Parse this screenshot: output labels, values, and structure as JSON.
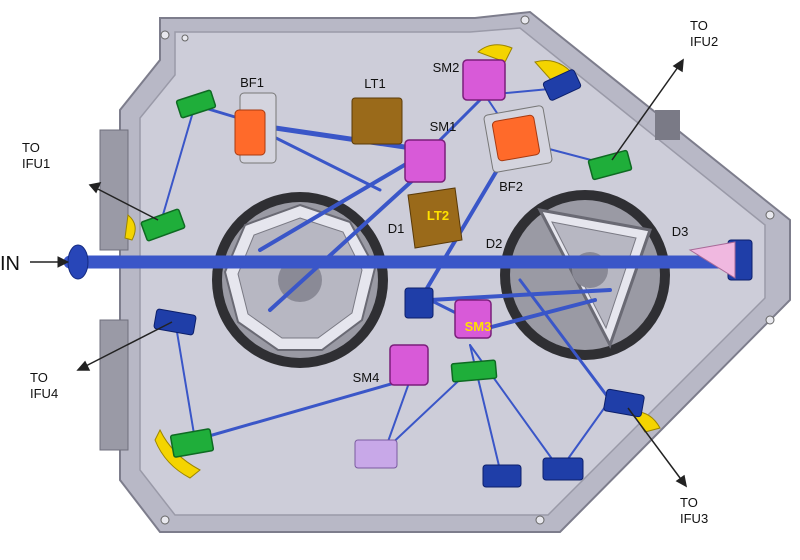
{
  "labels": {
    "input": "IN",
    "bf1": "BF1",
    "lt1": "LT1",
    "sm2": "SM2",
    "sm1": "SM1",
    "bf2": "BF2",
    "lt2": "LT2",
    "d1": "D1",
    "d2": "D2",
    "d3": "D3",
    "sm3": "SM3",
    "sm4": "SM4"
  },
  "outputs": {
    "ifu1": [
      "TO",
      "IFU1"
    ],
    "ifu2": [
      "TO",
      "IFU2"
    ],
    "ifu3": [
      "TO",
      "IFU3"
    ],
    "ifu4": [
      "TO",
      "IFU4"
    ]
  },
  "colors": {
    "plate": "#c9c9d6",
    "plate_edge": "#8c8c9a",
    "beam": "#3a56c8",
    "fold_mirror": "#1fae3a",
    "beam_splitter": "#ff6a2a",
    "steering_mirror": "#d85ad8",
    "lens": "#9a6a1a",
    "mount_blue": "#1f3ea8",
    "mount_lilac": "#c8a8e8",
    "yellow_tab": "#f4d400",
    "derotator": "#4a4a4e"
  }
}
